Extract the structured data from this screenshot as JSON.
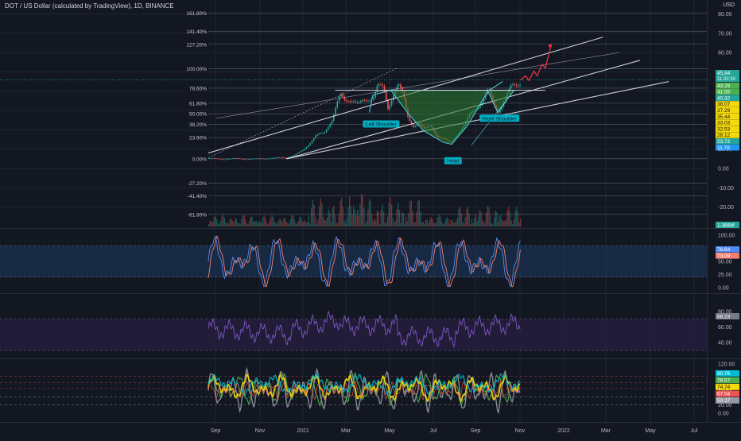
{
  "header": {
    "title": "DOT / US Dollar (calculated by TradingView), 1D, BINANCE",
    "currency": "USD"
  },
  "colors": {
    "background": "#131722",
    "grid": "#1f2433",
    "text": "#b2b5be",
    "fib": "#6b7080",
    "channel": "#e0e3eb",
    "bull": "#26a69a",
    "bear": "#ef5350",
    "pattern_fill": "#2e7d32",
    "pattern_stroke": "#4dd0e1",
    "projection": "#f23645",
    "last_price": "#26a69a",
    "stoch_k": "#4f8cf7",
    "stoch_d": "#f57f6e",
    "rsi": "#7e57c2",
    "yellow": "#f5d90a",
    "cyan": "#00bcd4",
    "green": "#4caf50",
    "gray": "#9598a1"
  },
  "chart_data": [
    {
      "type": "line",
      "pane": "price",
      "x": [
        "Sep",
        "Nov",
        "2021",
        "Mar",
        "May",
        "Jul",
        "Sep",
        "Nov",
        "2022",
        "Mar",
        "May",
        "Jul"
      ],
      "y_ticks": [
        80.0,
        70.0,
        60.0,
        50.0,
        40.0,
        30.0,
        20.0,
        10.0,
        0.0,
        -10.0,
        -20.0,
        -30.0
      ],
      "fib_levels": [
        {
          "label": "161.80%",
          "value": 80.4
        },
        {
          "label": "141.40%",
          "value": 70.9
        },
        {
          "label": "127.20%",
          "value": 64.3
        },
        {
          "label": "100.00%",
          "value": 51.6
        },
        {
          "label": "78.60%",
          "value": 41.6
        },
        {
          "label": "61.80%",
          "value": 33.8
        },
        {
          "label": "50.00%",
          "value": 28.3
        },
        {
          "label": "38.20%",
          "value": 22.8
        },
        {
          "label": "23.60%",
          "value": 16.0
        },
        {
          "label": "0.00%",
          "value": 5.0
        },
        {
          "label": "-27.20%",
          "value": -7.7
        },
        {
          "label": "-41.40%",
          "value": -14.3
        },
        {
          "label": "-61.80%",
          "value": -23.8
        }
      ],
      "price_series": [
        {
          "d": 0,
          "v": 5.2
        },
        {
          "d": 15,
          "v": 4.8
        },
        {
          "d": 30,
          "v": 5.1
        },
        {
          "d": 45,
          "v": 4.9
        },
        {
          "d": 60,
          "v": 5.0
        },
        {
          "d": 75,
          "v": 5.3
        },
        {
          "d": 85,
          "v": 5.6
        },
        {
          "d": 95,
          "v": 5.8
        },
        {
          "d": 105,
          "v": 7.0
        },
        {
          "d": 115,
          "v": 9.5
        },
        {
          "d": 125,
          "v": 14.5
        },
        {
          "d": 130,
          "v": 17.0
        },
        {
          "d": 140,
          "v": 18.0
        },
        {
          "d": 150,
          "v": 26.0
        },
        {
          "d": 155,
          "v": 33.0
        },
        {
          "d": 160,
          "v": 37.5
        },
        {
          "d": 165,
          "v": 34.5
        },
        {
          "d": 175,
          "v": 36.5
        },
        {
          "d": 182,
          "v": 33.5
        },
        {
          "d": 192,
          "v": 34.5
        },
        {
          "d": 200,
          "v": 38.0
        },
        {
          "d": 205,
          "v": 44.0
        },
        {
          "d": 212,
          "v": 41.0
        },
        {
          "d": 218,
          "v": 30.0
        },
        {
          "d": 224,
          "v": 39.0
        },
        {
          "d": 230,
          "v": 45.0
        },
        {
          "d": 236,
          "v": 38.0
        },
        {
          "d": 242,
          "v": 26.0
        },
        {
          "d": 248,
          "v": 22.0
        },
        {
          "d": 255,
          "v": 24.0
        },
        {
          "d": 262,
          "v": 20.0
        },
        {
          "d": 270,
          "v": 22.0
        },
        {
          "d": 278,
          "v": 17.0
        },
        {
          "d": 286,
          "v": 15.0
        },
        {
          "d": 294,
          "v": 13.0
        },
        {
          "d": 302,
          "v": 18.0
        },
        {
          "d": 310,
          "v": 22.0
        },
        {
          "d": 318,
          "v": 28.0
        },
        {
          "d": 326,
          "v": 32.0
        },
        {
          "d": 334,
          "v": 36.0
        },
        {
          "d": 340,
          "v": 40.5
        },
        {
          "d": 346,
          "v": 33.0
        },
        {
          "d": 352,
          "v": 30.0
        },
        {
          "d": 360,
          "v": 36.0
        },
        {
          "d": 368,
          "v": 42.0
        },
        {
          "d": 374,
          "v": 43.0
        },
        {
          "d": 380,
          "v": 45.8
        }
      ],
      "projection": [
        {
          "d": 380,
          "v": 45.8
        },
        {
          "d": 386,
          "v": 48.0
        },
        {
          "d": 390,
          "v": 45.5
        },
        {
          "d": 396,
          "v": 50.5
        },
        {
          "d": 400,
          "v": 48.0
        },
        {
          "d": 406,
          "v": 54.0
        },
        {
          "d": 410,
          "v": 52.0
        },
        {
          "d": 417,
          "v": 64.0
        }
      ],
      "channel_lines": [
        {
          "d1": 0,
          "v1": 8.0,
          "d2": 480,
          "v2": 68.0
        },
        {
          "d1": 95,
          "v1": 5.0,
          "d2": 525,
          "v2": 56.0
        },
        {
          "d1": 95,
          "v1": 5.0,
          "d2": 560,
          "v2": 45.0
        },
        {
          "d1": 10,
          "v1": 26.0,
          "d2": 500,
          "v2": 60.0
        }
      ],
      "head_shoulders": {
        "labels": [
          "Left Shoulder",
          "Head",
          "Right Shoulder"
        ],
        "neckline": {
          "d1": 222,
          "d2": 410,
          "v": 40.5
        },
        "outline": [
          {
            "d": 222,
            "v": 40.5
          },
          {
            "d": 244,
            "v": 28.0
          },
          {
            "d": 262,
            "v": 19.5
          },
          {
            "d": 286,
            "v": 13.5
          },
          {
            "d": 296,
            "v": 12.5
          },
          {
            "d": 315,
            "v": 22.0
          },
          {
            "d": 340,
            "v": 40.0
          },
          {
            "d": 352,
            "v": 29.0
          },
          {
            "d": 372,
            "v": 40.5
          }
        ]
      },
      "price_labels": [
        {
          "value": 45.84,
          "text": "45.84",
          "sub": "11:32:30",
          "color": "#26a69a"
        },
        {
          "value": 43.29,
          "text": "43.29",
          "color": "#4caf50"
        },
        {
          "value": 41.55,
          "text": "41.55",
          "color": "#4caf50"
        },
        {
          "value": 40.32,
          "text": "40.32",
          "color": "#26a69a"
        },
        {
          "value": 38.07,
          "text": "38.07",
          "color": "#f5d90a"
        },
        {
          "value": 37.29,
          "text": "37.29",
          "color": "#f5d90a"
        },
        {
          "value": 35.44,
          "text": "35.44",
          "color": "#f5d90a"
        },
        {
          "value": 33.03,
          "text": "33.03",
          "color": "#f5d90a"
        },
        {
          "value": 32.53,
          "text": "32.53",
          "color": "#f5d90a"
        },
        {
          "value": 28.12,
          "text": "28.12",
          "color": "#f5d90a"
        },
        {
          "value": 23.72,
          "text": "23.72",
          "color": "#26a69a"
        },
        {
          "value": 11.79,
          "text": "11.79",
          "color": "#2196f3"
        }
      ],
      "volume": {
        "value_text": "1.366M",
        "color": "#26a69a"
      }
    },
    {
      "type": "line",
      "pane": "stochastic",
      "y_ticks": [
        100.0,
        75.0,
        50.0,
        25.0,
        0.0
      ],
      "band": [
        80,
        20
      ],
      "series": [
        {
          "name": "K",
          "color": "#4f8cf7",
          "last": 78.64
        },
        {
          "name": "D",
          "color": "#f57f6e",
          "last": 73.09
        }
      ],
      "labels": [
        "78.64",
        "73.09"
      ]
    },
    {
      "type": "line",
      "pane": "rsi",
      "y_ticks": [
        80.0,
        60.0,
        40.0
      ],
      "band": [
        70,
        30
      ],
      "last": 68.23,
      "label": "68.23"
    },
    {
      "type": "line",
      "pane": "oscillator",
      "y_ticks": [
        120.0,
        100.0,
        80.0,
        60.0,
        40.0,
        20.0,
        0.0
      ],
      "labels": [
        {
          "text": "90.76",
          "color": "#00bcd4"
        },
        {
          "text": "78.57",
          "color": "#4caf50"
        },
        {
          "text": "74.74",
          "color": "#f5d90a"
        },
        {
          "text": "67.54",
          "color": "#ef5350"
        },
        {
          "text": "50.37",
          "color": "#9598a1"
        }
      ]
    }
  ]
}
